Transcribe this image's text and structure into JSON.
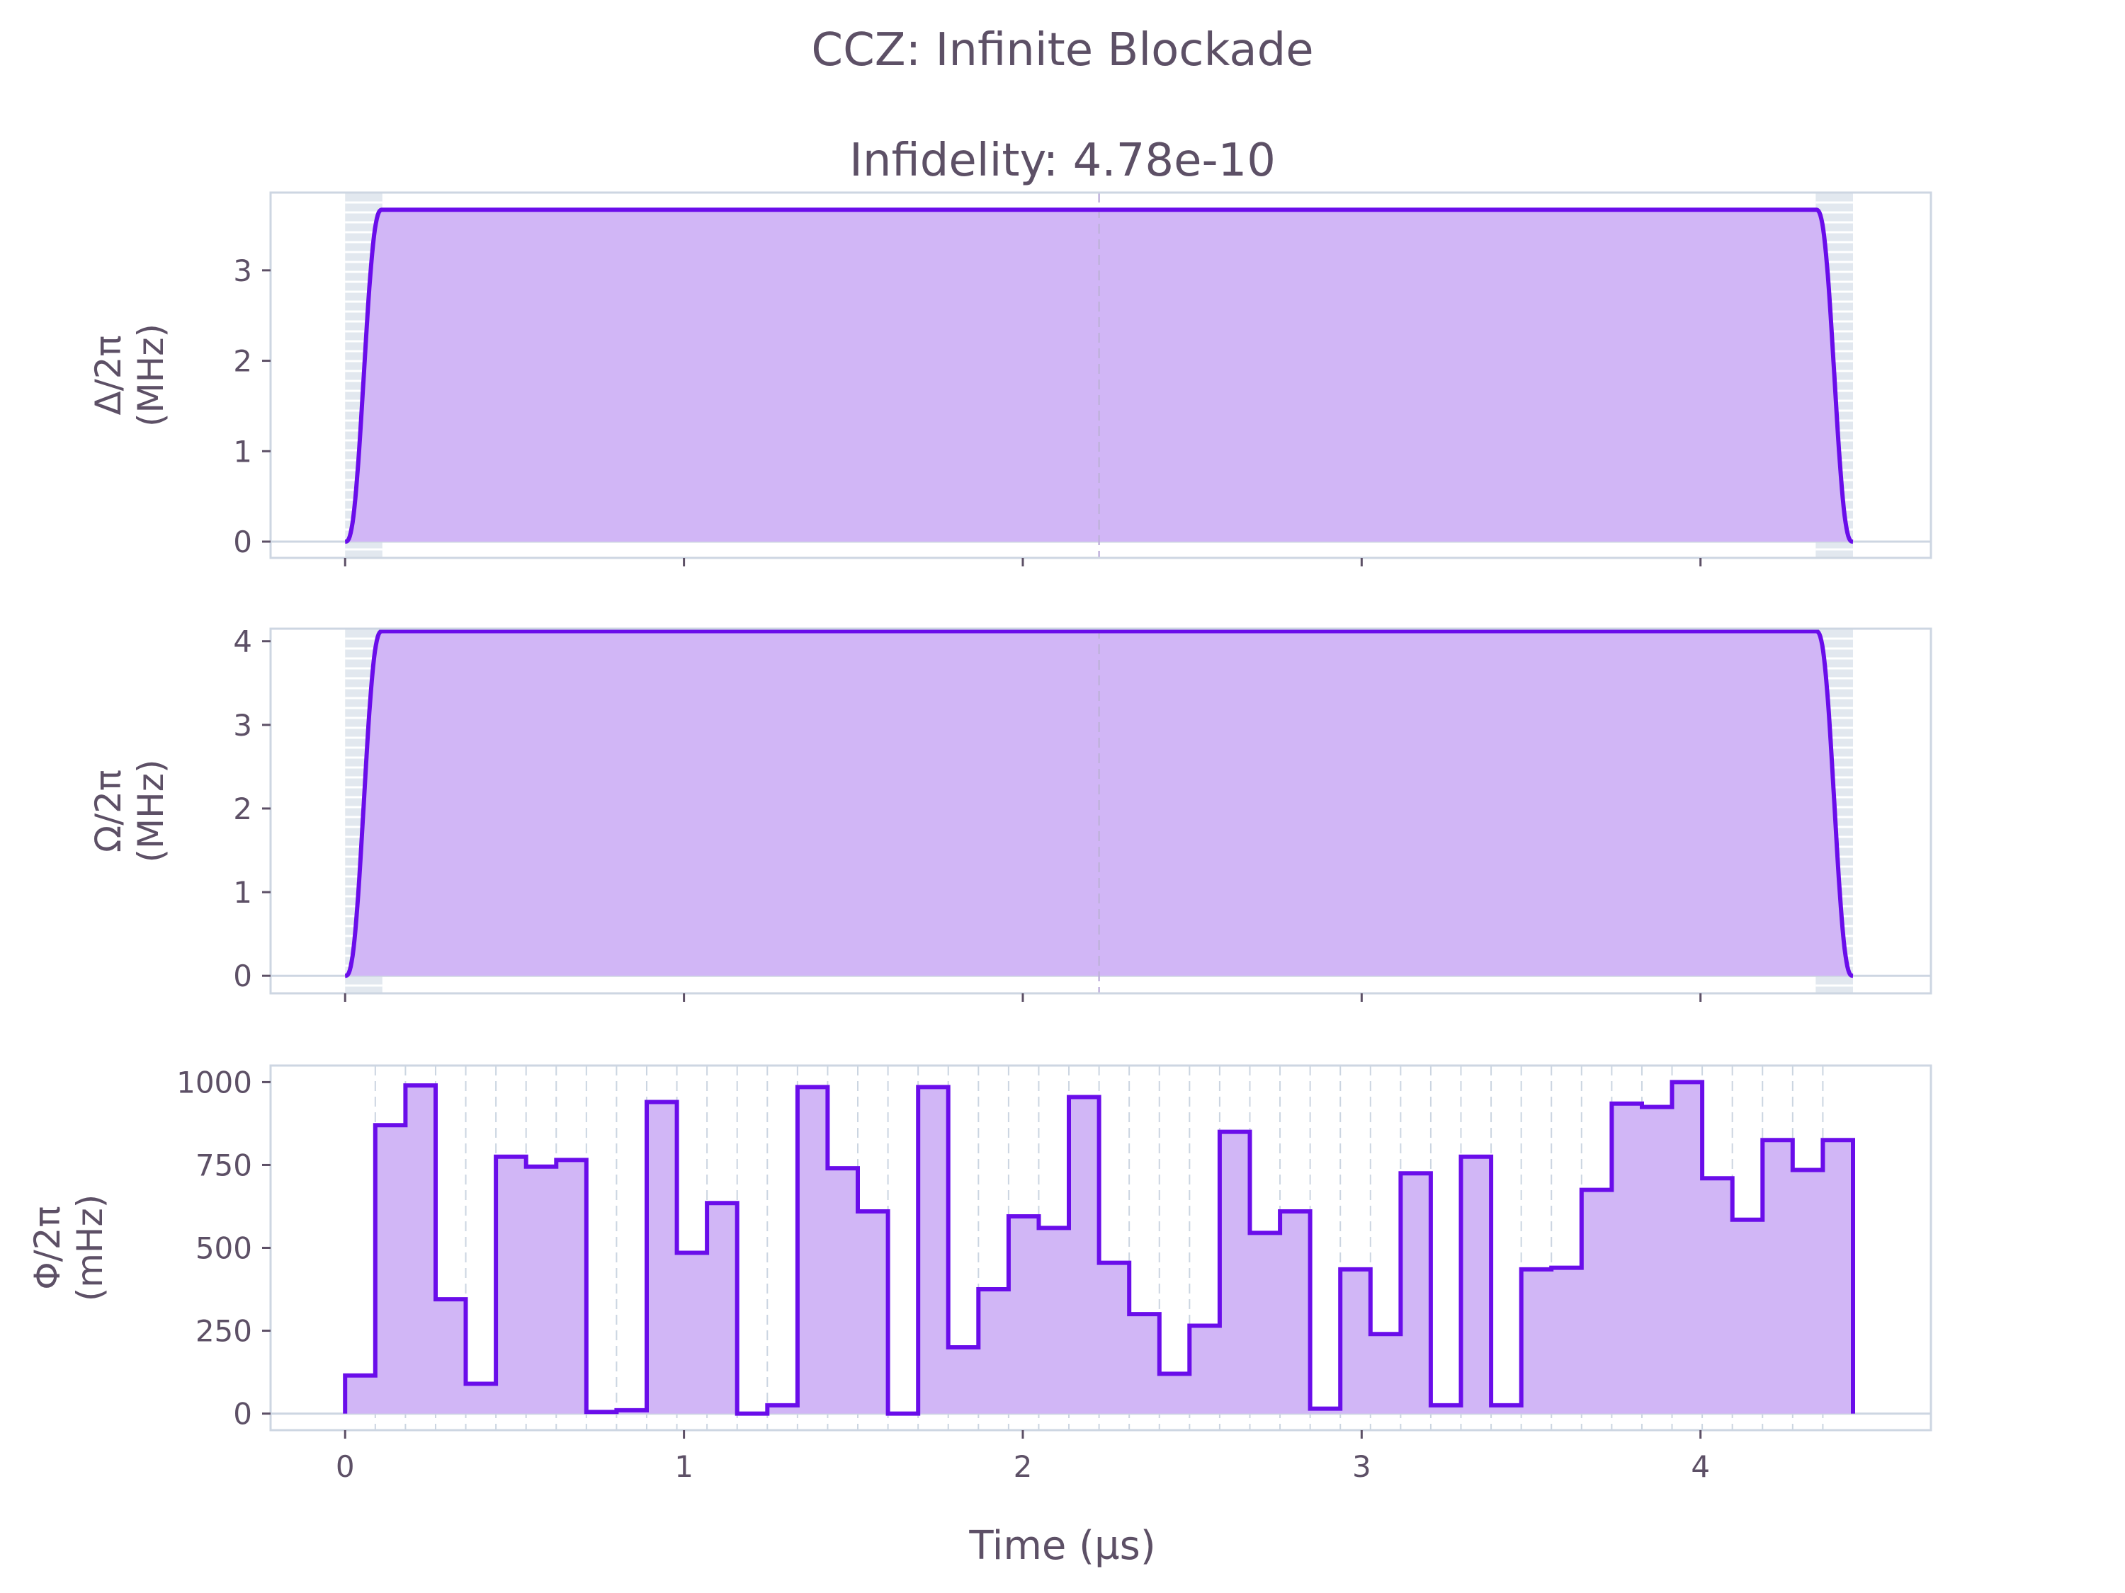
{
  "figure": {
    "title": "CCZ: Infinite Blockade",
    "subtitle": "Infidelity: 4.78e-10",
    "xlabel": "Time (µs)"
  },
  "colors": {
    "line": "#6a0dea",
    "fill": "#d1b6f6",
    "text": "#5d5066"
  },
  "chart_data": [
    {
      "type": "line",
      "name": "detuning",
      "ylabel": [
        "Δ/2π",
        "(MHz)"
      ],
      "ylim": [
        -0.18,
        3.86
      ],
      "xlim": [
        -0.22,
        4.68
      ],
      "yticks": [
        0,
        1,
        2,
        3
      ],
      "xticks": [
        0,
        1,
        2,
        3,
        4
      ],
      "xticklabels_visible": false,
      "grid": false,
      "max": 3.67,
      "rise_end": 0.11,
      "fall_start": 4.34,
      "t_end": 4.45,
      "midline": 2.225
    },
    {
      "type": "line",
      "name": "rabi",
      "ylabel": [
        "Ω/2π",
        "(MHz)"
      ],
      "ylim": [
        -0.21,
        4.15
      ],
      "xlim": [
        -0.22,
        4.68
      ],
      "yticks": [
        0,
        1,
        2,
        3,
        4
      ],
      "xticks": [
        0,
        1,
        2,
        3,
        4
      ],
      "xticklabels_visible": false,
      "grid": false,
      "max": 4.12,
      "rise_end": 0.11,
      "fall_start": 4.34,
      "t_end": 4.45,
      "midline": 2.225
    },
    {
      "type": "line",
      "name": "phase",
      "drawstyle": "steps",
      "ylabel": [
        "Φ/2π",
        "(mHz)"
      ],
      "ylim": [
        -50,
        1050
      ],
      "xlim": [
        -0.22,
        4.68
      ],
      "yticks": [
        0,
        250,
        500,
        750,
        1000
      ],
      "xticks": [
        0,
        1,
        2,
        3,
        4
      ],
      "xticklabels_visible": true,
      "grid": false,
      "t_start": 0,
      "t_end": 4.45,
      "values": [
        115,
        870,
        990,
        345,
        90,
        775,
        745,
        765,
        5,
        10,
        940,
        485,
        635,
        0,
        25,
        985,
        740,
        610,
        0,
        985,
        200,
        375,
        595,
        560,
        955,
        455,
        300,
        120,
        265,
        850,
        545,
        610,
        15,
        435,
        240,
        725,
        25,
        775,
        25,
        435,
        440,
        675,
        935,
        925,
        1000,
        710,
        585,
        825,
        735,
        825
      ]
    }
  ]
}
